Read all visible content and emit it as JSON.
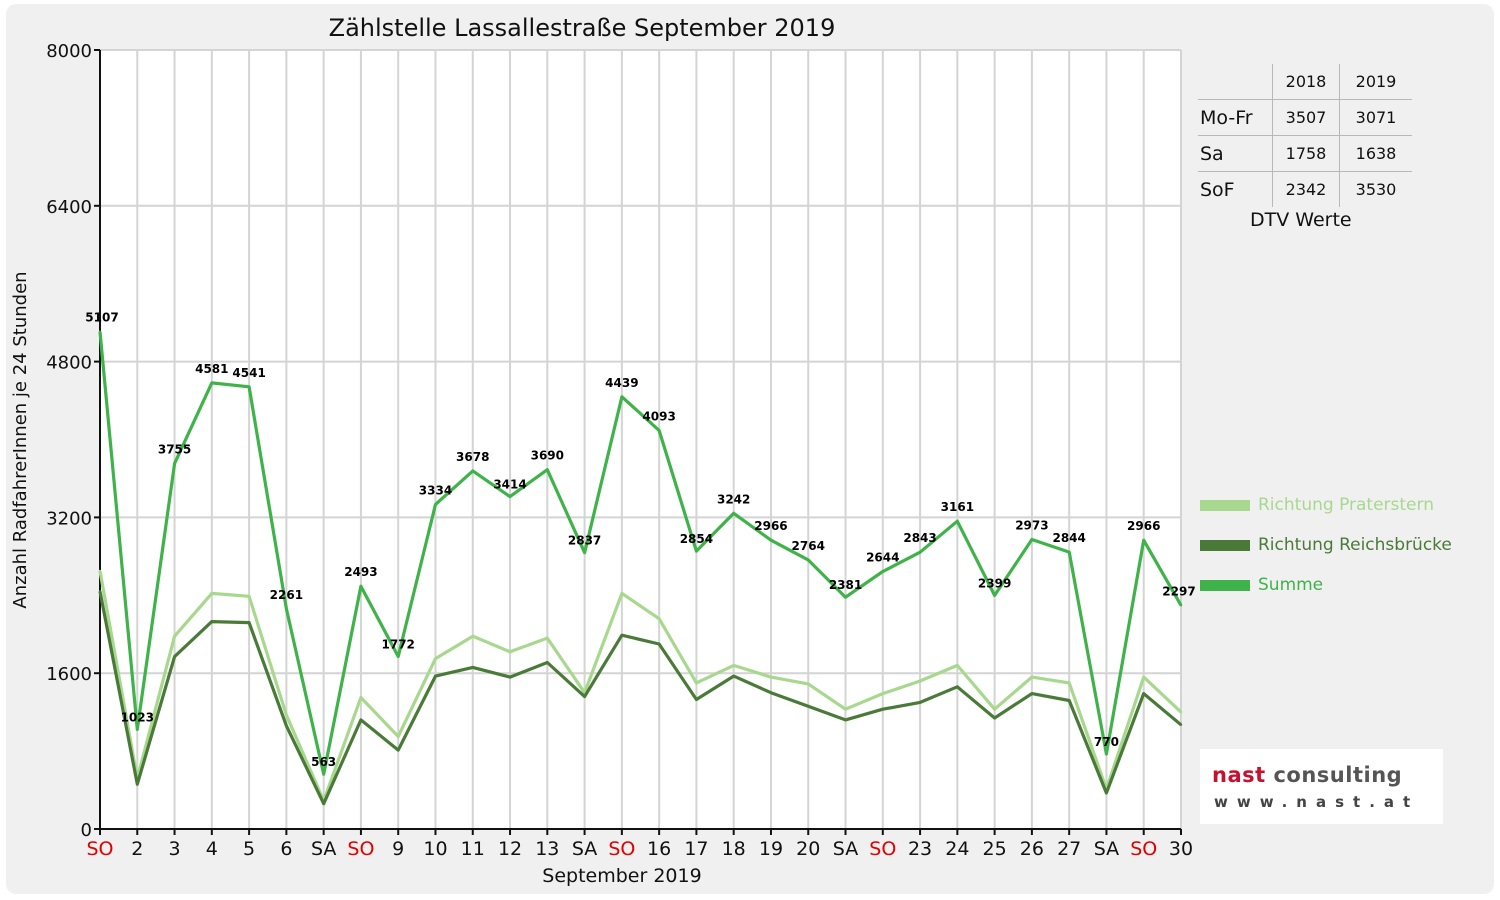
{
  "chart_data": {
    "type": "line",
    "title": "Zählstelle Lassallestraße September 2019",
    "xlabel": "September 2019",
    "ylabel": "Anzahl RadfahrerInnen je 24 Stunden",
    "ylim": [
      0,
      8000
    ],
    "yticks": [
      0,
      1600,
      3200,
      4800,
      6400,
      8000
    ],
    "grid": true,
    "legend_position": "right",
    "categories": [
      "SO",
      "2",
      "3",
      "4",
      "5",
      "6",
      "SA",
      "SO",
      "9",
      "10",
      "11",
      "12",
      "13",
      "SA",
      "SO",
      "16",
      "17",
      "18",
      "19",
      "20",
      "SA",
      "SO",
      "23",
      "24",
      "25",
      "26",
      "27",
      "SA",
      "SO",
      "30"
    ],
    "weekend_label_color": "#e00000",
    "weekend_categories": [
      "SO"
    ],
    "series": [
      {
        "name": "Richtung Praterstern",
        "color": "#a8d88e",
        "values": [
          2650,
          520,
          1980,
          2420,
          2390,
          1170,
          290,
          1350,
          950,
          1750,
          1980,
          1820,
          1960,
          1400,
          2420,
          2160,
          1500,
          1680,
          1560,
          1490,
          1230,
          1390,
          1520,
          1680,
          1230,
          1560,
          1500,
          410,
          1560,
          1200
        ]
      },
      {
        "name": "Richtung Reichsbrücke",
        "color": "#4a7a38",
        "values": [
          2440,
          460,
          1770,
          2130,
          2120,
          1060,
          260,
          1120,
          810,
          1570,
          1660,
          1560,
          1710,
          1360,
          1990,
          1900,
          1330,
          1570,
          1400,
          1260,
          1120,
          1230,
          1300,
          1460,
          1140,
          1390,
          1320,
          370,
          1390,
          1070
        ]
      },
      {
        "name": "Summe",
        "color": "#3fb34a",
        "values": [
          5107,
          1023,
          3755,
          4581,
          4541,
          2261,
          563,
          2493,
          1772,
          3334,
          3678,
          3414,
          3690,
          2837,
          4439,
          4093,
          2854,
          3242,
          2966,
          2764,
          2381,
          2644,
          2843,
          3161,
          2399,
          2973,
          2844,
          770,
          2966,
          2297
        ],
        "data_labels": [
          "5107",
          "1023",
          "3755",
          "4581",
          "4541",
          "2261",
          "563",
          "2493",
          "1772",
          "3334",
          "3678",
          "3414",
          "3690",
          "2837",
          "4439",
          "4093",
          "2854",
          "3242",
          "2966",
          "2764",
          "2381",
          "2644",
          "2843",
          "3161",
          "2399",
          "2973",
          "2844",
          "770",
          "2966",
          "2297"
        ]
      }
    ]
  },
  "dtv_table": {
    "caption": "DTV Werte",
    "columns": [
      "",
      "2018",
      "2019"
    ],
    "rows": [
      {
        "label": "Mo-Fr",
        "v2018": "3507",
        "v2019": "3071"
      },
      {
        "label": "Sa",
        "v2018": "1758",
        "v2019": "1638"
      },
      {
        "label": "SoF",
        "v2018": "2342",
        "v2019": "3530"
      }
    ]
  },
  "legend": [
    {
      "label": "Richtung Praterstern",
      "color": "#a8d88e"
    },
    {
      "label": "Richtung Reichsbrücke",
      "color": "#4a7a38"
    },
    {
      "label": "Summe",
      "color": "#3fb34a"
    }
  ],
  "logo": {
    "brand_first": "nast",
    "brand_second": "consulting",
    "url": "www.nast.at"
  }
}
